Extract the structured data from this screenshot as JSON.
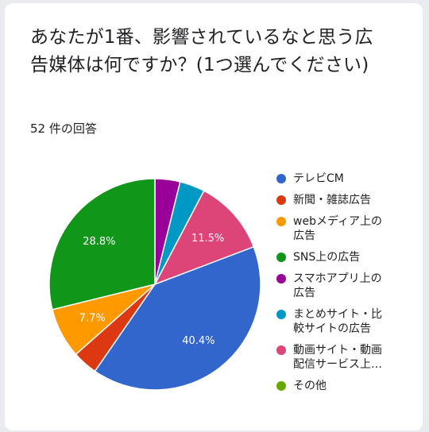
{
  "survey": {
    "question": "あなたが1番、影響されているなと思う広告媒体は何ですか？(1つ選んでください)",
    "response_count": "52 件の回答"
  },
  "chart_data": {
    "type": "pie",
    "total": 52,
    "start": "top",
    "direction": "clockwise",
    "legend_position": "right",
    "slices": [
      {
        "label": "スマホアプリ上の広告",
        "value": 2,
        "color": "#990099",
        "pct_label": ""
      },
      {
        "label": "まとめサイト・比較サイトの広告",
        "value": 2,
        "color": "#0099c6",
        "pct_label": ""
      },
      {
        "label": "動画サイト・動画配信サービス上の広告",
        "value": 6,
        "color": "#dd4477",
        "pct_label": "11.5%"
      },
      {
        "label": "その他",
        "value": 0,
        "color": "#66aa00",
        "pct_label": ""
      },
      {
        "label": "テレビCM",
        "value": 21,
        "color": "#3366cc",
        "pct_label": "40.4%"
      },
      {
        "label": "新聞・雑誌広告",
        "value": 2,
        "color": "#dc3912",
        "pct_label": ""
      },
      {
        "label": "webメディア上の広告",
        "value": 4,
        "color": "#ff9900",
        "pct_label": "7.7%"
      },
      {
        "label": "SNS上の広告",
        "value": 15,
        "color": "#109618",
        "pct_label": "28.8%"
      }
    ],
    "legend": [
      {
        "label": "テレビCM",
        "color": "#3366cc"
      },
      {
        "label": "新聞・雑誌広告",
        "color": "#dc3912"
      },
      {
        "label": "webメディア上の広告",
        "color": "#ff9900"
      },
      {
        "label": "SNS上の広告",
        "color": "#109618"
      },
      {
        "label": "スマホアプリ上の広告",
        "color": "#990099"
      },
      {
        "label": "まとめサイト・比較サイトの広告",
        "color": "#0099c6"
      },
      {
        "label": "動画サイト・動画配信サービス上…",
        "color": "#dd4477"
      },
      {
        "label": "その他",
        "color": "#66aa00"
      }
    ]
  }
}
